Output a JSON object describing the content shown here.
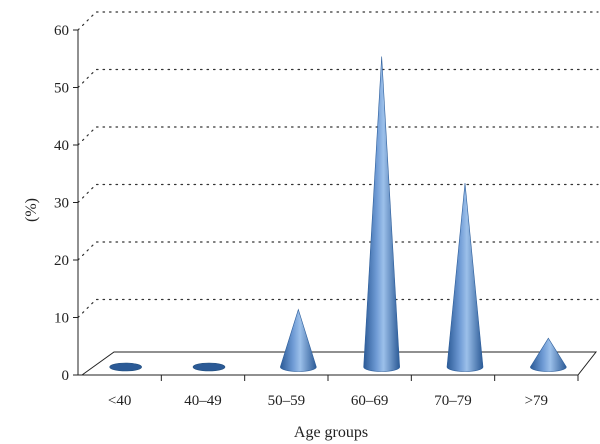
{
  "chart_data": {
    "type": "bar",
    "subtype": "3d-cone",
    "categories": [
      "<40",
      "40–49",
      "50–59",
      "60–69",
      "70–79",
      ">79"
    ],
    "values": [
      0.3,
      0.3,
      10,
      54,
      32,
      5
    ],
    "title": "",
    "xlabel": "Age groups",
    "ylabel": "(%)",
    "ylim": [
      0,
      60
    ],
    "yticks": [
      0,
      10,
      20,
      30,
      40,
      50,
      60
    ],
    "grid": true,
    "legend": "none",
    "colors": {
      "cone": "#4a7fc1",
      "cone_dark": "#2b5a96",
      "cone_light": "#9cc0ea",
      "axis": "#222222"
    }
  }
}
